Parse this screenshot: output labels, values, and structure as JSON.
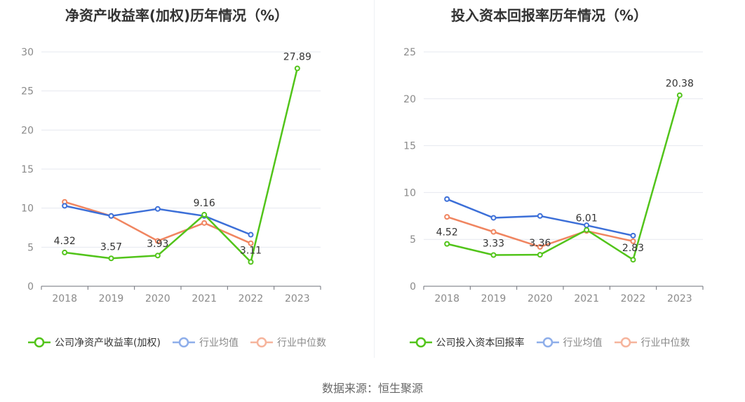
{
  "source": "数据来源：恒生聚源",
  "colors": {
    "company": "#52c41a",
    "average": "#3c6fd8",
    "median": "#f08560"
  },
  "chart_data": [
    {
      "type": "line",
      "title": "净资产收益率(加权)历年情况（%）",
      "categories": [
        "2018",
        "2019",
        "2020",
        "2021",
        "2022",
        "2023"
      ],
      "ylim": [
        0,
        30
      ],
      "yticks": [
        0,
        5,
        10,
        15,
        20,
        25,
        30
      ],
      "grid": true,
      "legend_position": "bottom",
      "series": [
        {
          "name": "公司净资产收益率(加权)",
          "key": "company",
          "values": [
            4.32,
            3.57,
            3.93,
            9.16,
            3.11,
            27.89
          ],
          "labels": [
            "4.32",
            "3.57",
            "3.93",
            "9.16",
            "3.11",
            "27.89"
          ]
        },
        {
          "name": "行业均值",
          "key": "average",
          "values": [
            10.3,
            9.0,
            9.9,
            9.0,
            6.6,
            null
          ]
        },
        {
          "name": "行业中位数",
          "key": "median",
          "values": [
            10.8,
            9.0,
            5.8,
            8.1,
            5.5,
            null
          ]
        }
      ]
    },
    {
      "type": "line",
      "title": "投入资本回报率历年情况（%）",
      "categories": [
        "2018",
        "2019",
        "2020",
        "2021",
        "2022",
        "2023"
      ],
      "ylim": [
        0,
        25
      ],
      "yticks": [
        0,
        5,
        10,
        15,
        20,
        25
      ],
      "grid": true,
      "legend_position": "bottom",
      "series": [
        {
          "name": "公司投入资本回报率",
          "key": "company",
          "values": [
            4.52,
            3.33,
            3.36,
            6.01,
            2.83,
            20.38
          ],
          "labels": [
            "4.52",
            "3.33",
            "3.36",
            "6.01",
            "2.83",
            "20.38"
          ]
        },
        {
          "name": "行业均值",
          "key": "average",
          "values": [
            9.3,
            7.3,
            7.5,
            6.5,
            5.4,
            null
          ]
        },
        {
          "name": "行业中位数",
          "key": "median",
          "values": [
            7.4,
            5.8,
            4.2,
            5.9,
            4.8,
            null
          ]
        }
      ]
    }
  ]
}
